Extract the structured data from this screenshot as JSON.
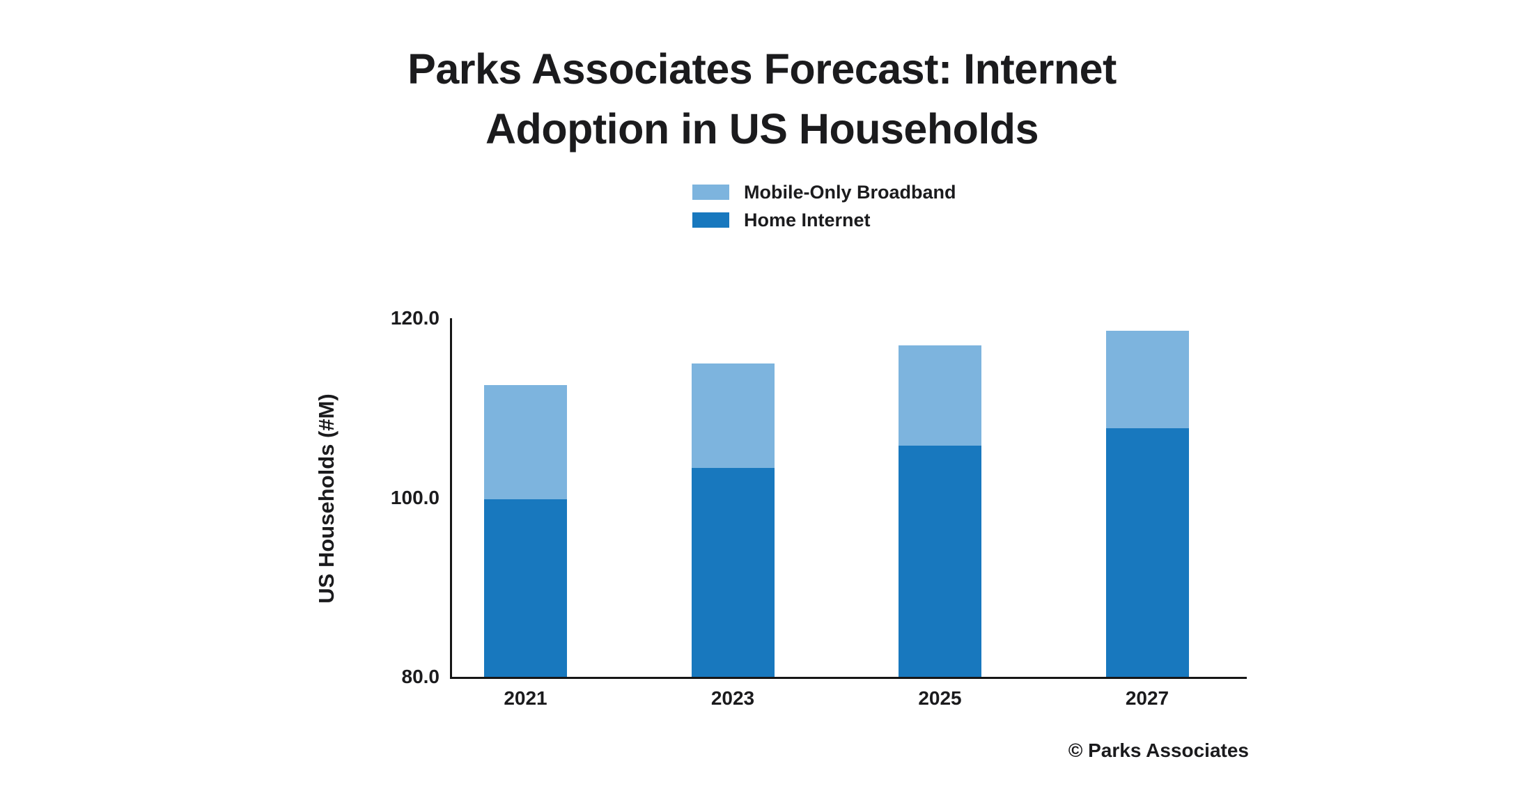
{
  "title": {
    "line1": "Parks Associates Forecast: Internet",
    "line2": "Adoption in US Households"
  },
  "legend": [
    {
      "label": "Mobile-Only Broadband",
      "color": "#7db4de"
    },
    {
      "label": "Home Internet",
      "color": "#1878be"
    }
  ],
  "axis": {
    "y_label": "US Households (#M)",
    "y_ticks": [
      "120.0",
      "100.0",
      "80.0"
    ]
  },
  "footer": {
    "copyright": "© Parks Associates"
  },
  "chart_data": {
    "type": "bar",
    "stacked": true,
    "title": "Parks Associates Forecast: Internet Adoption in US Households",
    "xlabel": "",
    "ylabel": "US Households (#M)",
    "ylim": [
      80,
      120
    ],
    "y_tick_values": [
      120.0,
      100.0,
      80.0
    ],
    "grid": false,
    "legend_position": "top",
    "categories": [
      "2021",
      "2023",
      "2025",
      "2027"
    ],
    "series": [
      {
        "name": "Home Internet",
        "color": "#1878be",
        "values": [
          99.7,
          103.2,
          105.6,
          107.6
        ]
      },
      {
        "name": "Mobile-Only Broadband",
        "color": "#7db4de",
        "values": [
          12.7,
          11.6,
          11.1,
          10.8
        ]
      }
    ],
    "totals": [
      112.4,
      114.8,
      116.7,
      118.4
    ]
  }
}
